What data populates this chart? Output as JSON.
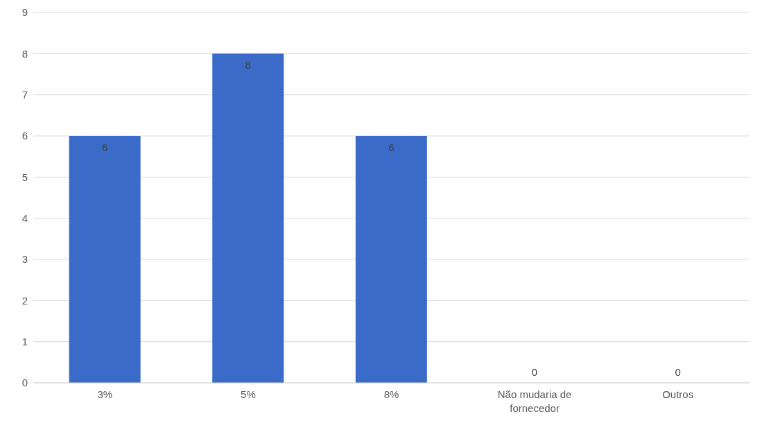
{
  "chart_data": {
    "type": "bar",
    "categories": [
      "3%",
      "5%",
      "8%",
      "Não mudaria de fornecedor",
      "Outros"
    ],
    "values": [
      6,
      8,
      6,
      0,
      0
    ],
    "color": "#3a6bc8",
    "ylim": [
      0,
      9
    ],
    "yticks": [
      0,
      1,
      2,
      3,
      4,
      5,
      6,
      7,
      8,
      9
    ],
    "grid": "y",
    "data_labels": true
  }
}
